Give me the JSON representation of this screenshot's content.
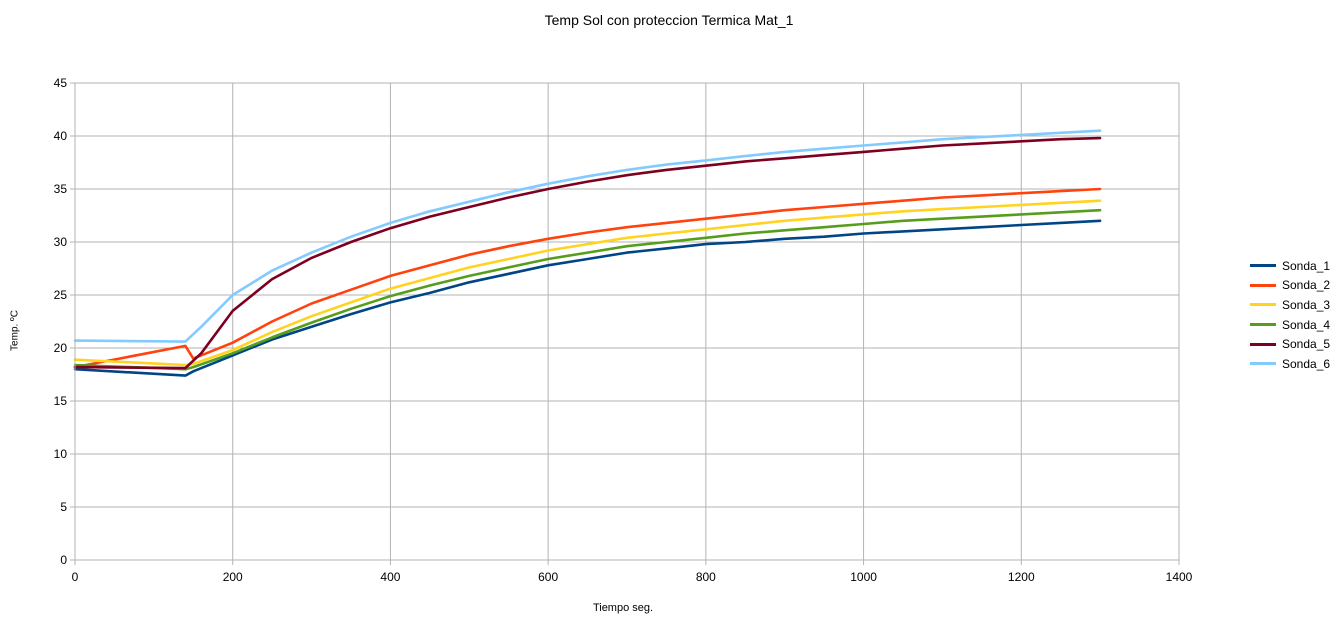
{
  "chart_data": {
    "type": "line",
    "title": "Temp Sol con proteccion Termica Mat_1",
    "xlabel": "Tiempo seg.",
    "ylabel": "Temp. ºC",
    "xlim": [
      0,
      1400
    ],
    "ylim": [
      0,
      45
    ],
    "xticks": [
      0,
      200,
      400,
      600,
      800,
      1000,
      1200,
      1400
    ],
    "yticks": [
      0,
      5,
      10,
      15,
      20,
      25,
      30,
      35,
      40,
      45
    ],
    "grid": true,
    "legend_position": "right",
    "series": [
      {
        "name": "Sonda_1",
        "color": "#004586",
        "x": [
          0,
          140,
          150,
          200,
          250,
          300,
          350,
          400,
          450,
          500,
          550,
          600,
          650,
          700,
          750,
          800,
          850,
          900,
          950,
          1000,
          1050,
          1100,
          1150,
          1200,
          1250,
          1300
        ],
        "y": [
          18.0,
          17.4,
          17.8,
          19.3,
          20.8,
          22.0,
          23.2,
          24.3,
          25.2,
          26.2,
          27.0,
          27.8,
          28.4,
          29.0,
          29.4,
          29.8,
          30.0,
          30.3,
          30.5,
          30.8,
          31.0,
          31.2,
          31.4,
          31.6,
          31.8,
          32.0
        ]
      },
      {
        "name": "Sonda_2",
        "color": "#ff420e",
        "x": [
          0,
          140,
          150,
          200,
          250,
          300,
          350,
          400,
          450,
          500,
          550,
          600,
          650,
          700,
          750,
          800,
          850,
          900,
          950,
          1000,
          1050,
          1100,
          1150,
          1200,
          1250,
          1300
        ],
        "y": [
          18.2,
          20.2,
          19.0,
          20.5,
          22.5,
          24.2,
          25.5,
          26.8,
          27.8,
          28.8,
          29.6,
          30.3,
          30.9,
          31.4,
          31.8,
          32.2,
          32.6,
          33.0,
          33.3,
          33.6,
          33.9,
          34.2,
          34.4,
          34.6,
          34.8,
          35.0
        ]
      },
      {
        "name": "Sonda_3",
        "color": "#ffd320",
        "x": [
          0,
          140,
          150,
          200,
          250,
          300,
          350,
          400,
          450,
          500,
          550,
          600,
          650,
          700,
          750,
          800,
          850,
          900,
          950,
          1000,
          1050,
          1100,
          1150,
          1200,
          1250,
          1300
        ],
        "y": [
          18.9,
          18.4,
          18.5,
          19.8,
          21.5,
          23.0,
          24.3,
          25.6,
          26.6,
          27.6,
          28.4,
          29.2,
          29.8,
          30.4,
          30.8,
          31.2,
          31.6,
          32.0,
          32.3,
          32.6,
          32.9,
          33.1,
          33.3,
          33.5,
          33.7,
          33.9
        ]
      },
      {
        "name": "Sonda_4",
        "color": "#579d1c",
        "x": [
          0,
          140,
          150,
          200,
          250,
          300,
          350,
          400,
          450,
          500,
          550,
          600,
          650,
          700,
          750,
          800,
          850,
          900,
          950,
          1000,
          1050,
          1100,
          1150,
          1200,
          1250,
          1300
        ],
        "y": [
          18.4,
          18.0,
          18.2,
          19.5,
          21.0,
          22.4,
          23.7,
          24.9,
          25.9,
          26.8,
          27.6,
          28.4,
          29.0,
          29.6,
          30.0,
          30.4,
          30.8,
          31.1,
          31.4,
          31.7,
          32.0,
          32.2,
          32.4,
          32.6,
          32.8,
          33.0
        ]
      },
      {
        "name": "Sonda_5",
        "color": "#7e0021",
        "x": [
          0,
          140,
          160,
          200,
          250,
          300,
          350,
          400,
          450,
          500,
          550,
          600,
          650,
          700,
          750,
          800,
          850,
          900,
          950,
          1000,
          1050,
          1100,
          1150,
          1200,
          1250,
          1300
        ],
        "y": [
          18.2,
          18.1,
          19.5,
          23.5,
          26.5,
          28.5,
          30.0,
          31.3,
          32.4,
          33.3,
          34.2,
          35.0,
          35.7,
          36.3,
          36.8,
          37.2,
          37.6,
          37.9,
          38.2,
          38.5,
          38.8,
          39.1,
          39.3,
          39.5,
          39.7,
          39.8
        ]
      },
      {
        "name": "Sonda_6",
        "color": "#83caff",
        "x": [
          0,
          140,
          160,
          200,
          250,
          300,
          350,
          400,
          450,
          500,
          550,
          600,
          650,
          700,
          750,
          800,
          850,
          900,
          950,
          1000,
          1050,
          1100,
          1150,
          1200,
          1250,
          1300
        ],
        "y": [
          20.7,
          20.6,
          22.0,
          25.0,
          27.3,
          29.0,
          30.5,
          31.8,
          32.9,
          33.8,
          34.7,
          35.5,
          36.2,
          36.8,
          37.3,
          37.7,
          38.1,
          38.5,
          38.8,
          39.1,
          39.4,
          39.7,
          39.9,
          40.1,
          40.3,
          40.5
        ]
      }
    ]
  }
}
